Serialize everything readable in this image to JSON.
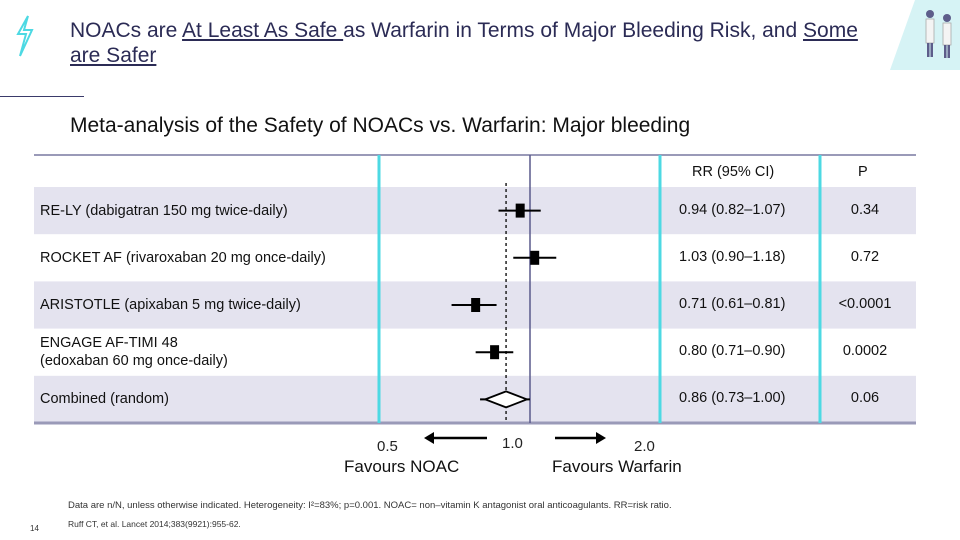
{
  "title": {
    "p1": "NOACs are ",
    "u1": "At Least As Safe ",
    "p2": "as Warfarin in Terms of Major Bleeding Risk, and ",
    "u2": "Some are Safer"
  },
  "subtitle": "Meta-analysis of the Safety of NOACs vs. Warfarin: Major bleeding",
  "chart_data": {
    "type": "forest",
    "title": "Meta-analysis of the Safety of NOACs vs. Warfarin: Major bleeding",
    "columns": [
      "RR (95% CI)",
      "P"
    ],
    "x_ticks": [
      "0.5",
      "1.0",
      "2.0"
    ],
    "xlim": [
      0.5,
      2.0
    ],
    "reference_line": 1.0,
    "x_labels": {
      "left": "Favours NOAC",
      "right": "Favours Warfarin"
    },
    "rows": [
      {
        "label_lines": [
          "RE-LY (dabigatran 150 mg twice-daily)"
        ],
        "rr": 0.94,
        "lo": 0.82,
        "hi": 1.07,
        "rr_text": "0.94 (0.82–1.07)",
        "p_text": "0.34",
        "marker": "square"
      },
      {
        "label_lines": [
          "ROCKET AF (rivaroxaban 20 mg once-daily)"
        ],
        "rr": 1.03,
        "lo": 0.9,
        "hi": 1.18,
        "rr_text": "1.03 (0.90–1.18)",
        "p_text": "0.72",
        "marker": "square"
      },
      {
        "label_lines": [
          "ARISTOTLE (apixaban 5 mg twice-daily)"
        ],
        "rr": 0.71,
        "lo": 0.61,
        "hi": 0.81,
        "rr_text": "0.71 (0.61–0.81)",
        "p_text": "<0.0001",
        "marker": "square"
      },
      {
        "label_lines": [
          "ENGAGE AF-TIMI 48",
          "(edoxaban 60 mg once-daily)"
        ],
        "rr": 0.8,
        "lo": 0.71,
        "hi": 0.9,
        "rr_text": "0.80 (0.71–0.90)",
        "p_text": "0.0002",
        "marker": "square"
      },
      {
        "label_lines": [
          "Combined (random)"
        ],
        "rr": 0.86,
        "lo": 0.73,
        "hi": 1.0,
        "rr_text": "0.86 (0.73–1.00)",
        "p_text": "0.06",
        "marker": "diamond"
      }
    ]
  },
  "footnote": "Data are n/N, unless otherwise indicated. Heterogeneity: I²=83%; p=0.001. NOAC= non–vitamin K antagonist oral anticoagulants. RR=risk ratio.",
  "reference": "Ruff CT, et al. Lancet 2014;383(9921):955-62.",
  "page_number": "14",
  "colors": {
    "accent": "#4dd9e3",
    "band": "#e4e3ef",
    "rule": "#9a9ab8",
    "ref_line": "#5a5a8c"
  }
}
